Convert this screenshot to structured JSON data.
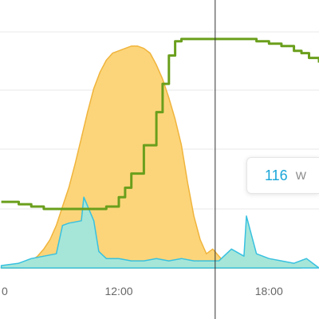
{
  "chart_data": {
    "type": "area",
    "title": "",
    "xlabel": "",
    "ylabel": "",
    "x_tick_labels": [
      "0",
      "12:00",
      "18:00"
    ],
    "xlim_hours": [
      7.25,
      20.0
    ],
    "grid": "horizontal",
    "series": [
      {
        "kind": "area",
        "color": "#fcd57a",
        "stroke": "#f0b43c",
        "x": [
          7.3,
          8.0,
          8.5,
          8.75,
          9.0,
          9.25,
          9.5,
          9.75,
          10.0,
          10.25,
          10.5,
          10.75,
          11.0,
          11.25,
          11.5,
          11.75,
          12.0,
          12.25,
          12.5,
          12.75,
          13.0,
          13.25,
          13.5,
          13.75,
          14.0,
          14.25,
          14.5,
          14.75,
          15.0,
          15.25,
          15.5,
          15.75,
          16.0,
          16.25,
          16.5,
          16.75,
          17.0,
          17.25,
          17.5,
          17.75,
          18.0,
          18.25,
          18.5,
          18.75,
          19.0,
          19.3
        ],
        "values": [
          0.0,
          0.02,
          0.03,
          0.05,
          0.08,
          0.12,
          0.18,
          0.26,
          0.34,
          0.44,
          0.55,
          0.66,
          0.76,
          0.83,
          0.88,
          0.91,
          0.92,
          0.93,
          0.94,
          0.94,
          0.93,
          0.91,
          0.86,
          0.8,
          0.72,
          0.63,
          0.52,
          0.36,
          0.22,
          0.12,
          0.06,
          0.08,
          0.05,
          0.02,
          0.01,
          0.0,
          0.0,
          0.0,
          0.0,
          0.0,
          0.0,
          0.0,
          0.0,
          0.0,
          0.0,
          0.0
        ]
      },
      {
        "kind": "area",
        "color": "#a6e6d8",
        "stroke": "#38c1e0",
        "x": [
          7.3,
          8.0,
          8.5,
          9.0,
          9.5,
          9.75,
          10.0,
          10.5,
          10.6,
          11.0,
          11.2,
          11.5,
          12.0,
          12.5,
          13.0,
          13.5,
          14.0,
          14.5,
          15.0,
          15.5,
          16.0,
          16.5,
          17.0,
          17.1,
          17.5,
          18.0,
          18.5,
          19.0,
          19.5,
          20.0
        ],
        "values": [
          0.01,
          0.02,
          0.04,
          0.05,
          0.06,
          0.18,
          0.19,
          0.2,
          0.3,
          0.2,
          0.07,
          0.04,
          0.04,
          0.03,
          0.03,
          0.04,
          0.03,
          0.04,
          0.03,
          0.03,
          0.03,
          0.08,
          0.05,
          0.22,
          0.06,
          0.04,
          0.03,
          0.02,
          0.04,
          0.0
        ]
      },
      {
        "kind": "line",
        "color": "#6a9f1c",
        "x": [
          7.3,
          8.0,
          8.5,
          9.0,
          9.5,
          10.0,
          10.5,
          10.75,
          11.0,
          11.5,
          12.0,
          12.25,
          12.5,
          13.0,
          13.5,
          13.75,
          14.0,
          14.25,
          14.5,
          14.75,
          15.0,
          15.25,
          15.5,
          16.0,
          16.5,
          17.0,
          17.5,
          18.0,
          18.5,
          19.0,
          19.3,
          19.6,
          20.0
        ],
        "values": [
          0.28,
          0.27,
          0.26,
          0.25,
          0.25,
          0.25,
          0.25,
          0.25,
          0.25,
          0.26,
          0.3,
          0.34,
          0.4,
          0.52,
          0.66,
          0.78,
          0.9,
          0.96,
          0.97,
          0.97,
          0.97,
          0.97,
          0.97,
          0.97,
          0.97,
          0.97,
          0.96,
          0.95,
          0.94,
          0.92,
          0.91,
          0.89,
          0.87
        ]
      }
    ],
    "cursor_hour": 15.85,
    "tooltip": {
      "value": "116",
      "unit": "W"
    }
  }
}
